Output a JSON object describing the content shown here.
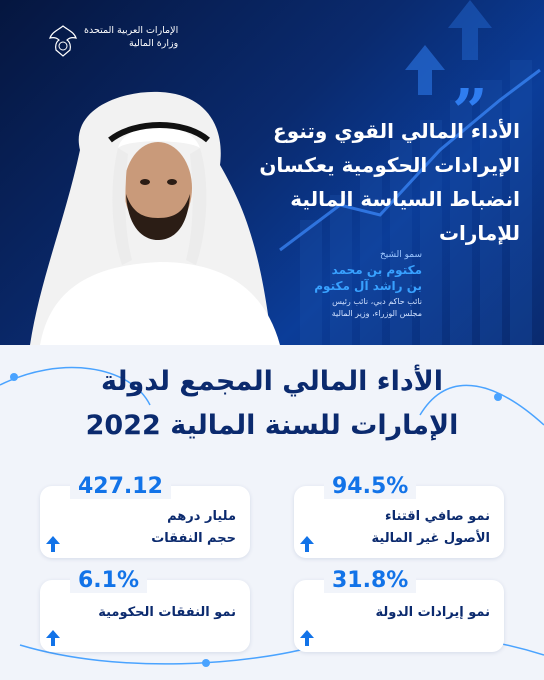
{
  "header": {
    "org_line1": "الإمارات العربية المتحدة",
    "org_line2": "وزارة المالية"
  },
  "quote": {
    "line1": "الأداء المالي القوي وتنوع",
    "line2": "الإيرادات الحكومية يعكسان",
    "line3": "انضباط السياسة المالية",
    "line4": "للإمارات"
  },
  "signature": {
    "title": "سمو الشيخ",
    "name1": "مكتوم بن محمد",
    "name2": "بن راشد آل مكتوم",
    "role1": "نائب حاكم دبي، نائب رئيس",
    "role2": "مجلس الوزراء، وزير المالية"
  },
  "headline": {
    "line1": "الأداء المالي المجمع لدولة",
    "line2": "الإمارات للسنة المالية 2022"
  },
  "stats": [
    {
      "value": "427.12",
      "label1": "مليار درهم",
      "label2": "حجم النفقات"
    },
    {
      "value": "94.5%",
      "label1": "نمو صافي اقتناء",
      "label2": "الأصول غير المالية"
    },
    {
      "value": "6.1%",
      "label1": "نمو النفقات الحكومية",
      "label2": ""
    },
    {
      "value": "31.8%",
      "label1": "نمو إيرادات الدولة",
      "label2": ""
    }
  ],
  "colors": {
    "navy": "#0b2a6e",
    "accent": "#1273e8",
    "quote_mark": "#2f7df0"
  }
}
